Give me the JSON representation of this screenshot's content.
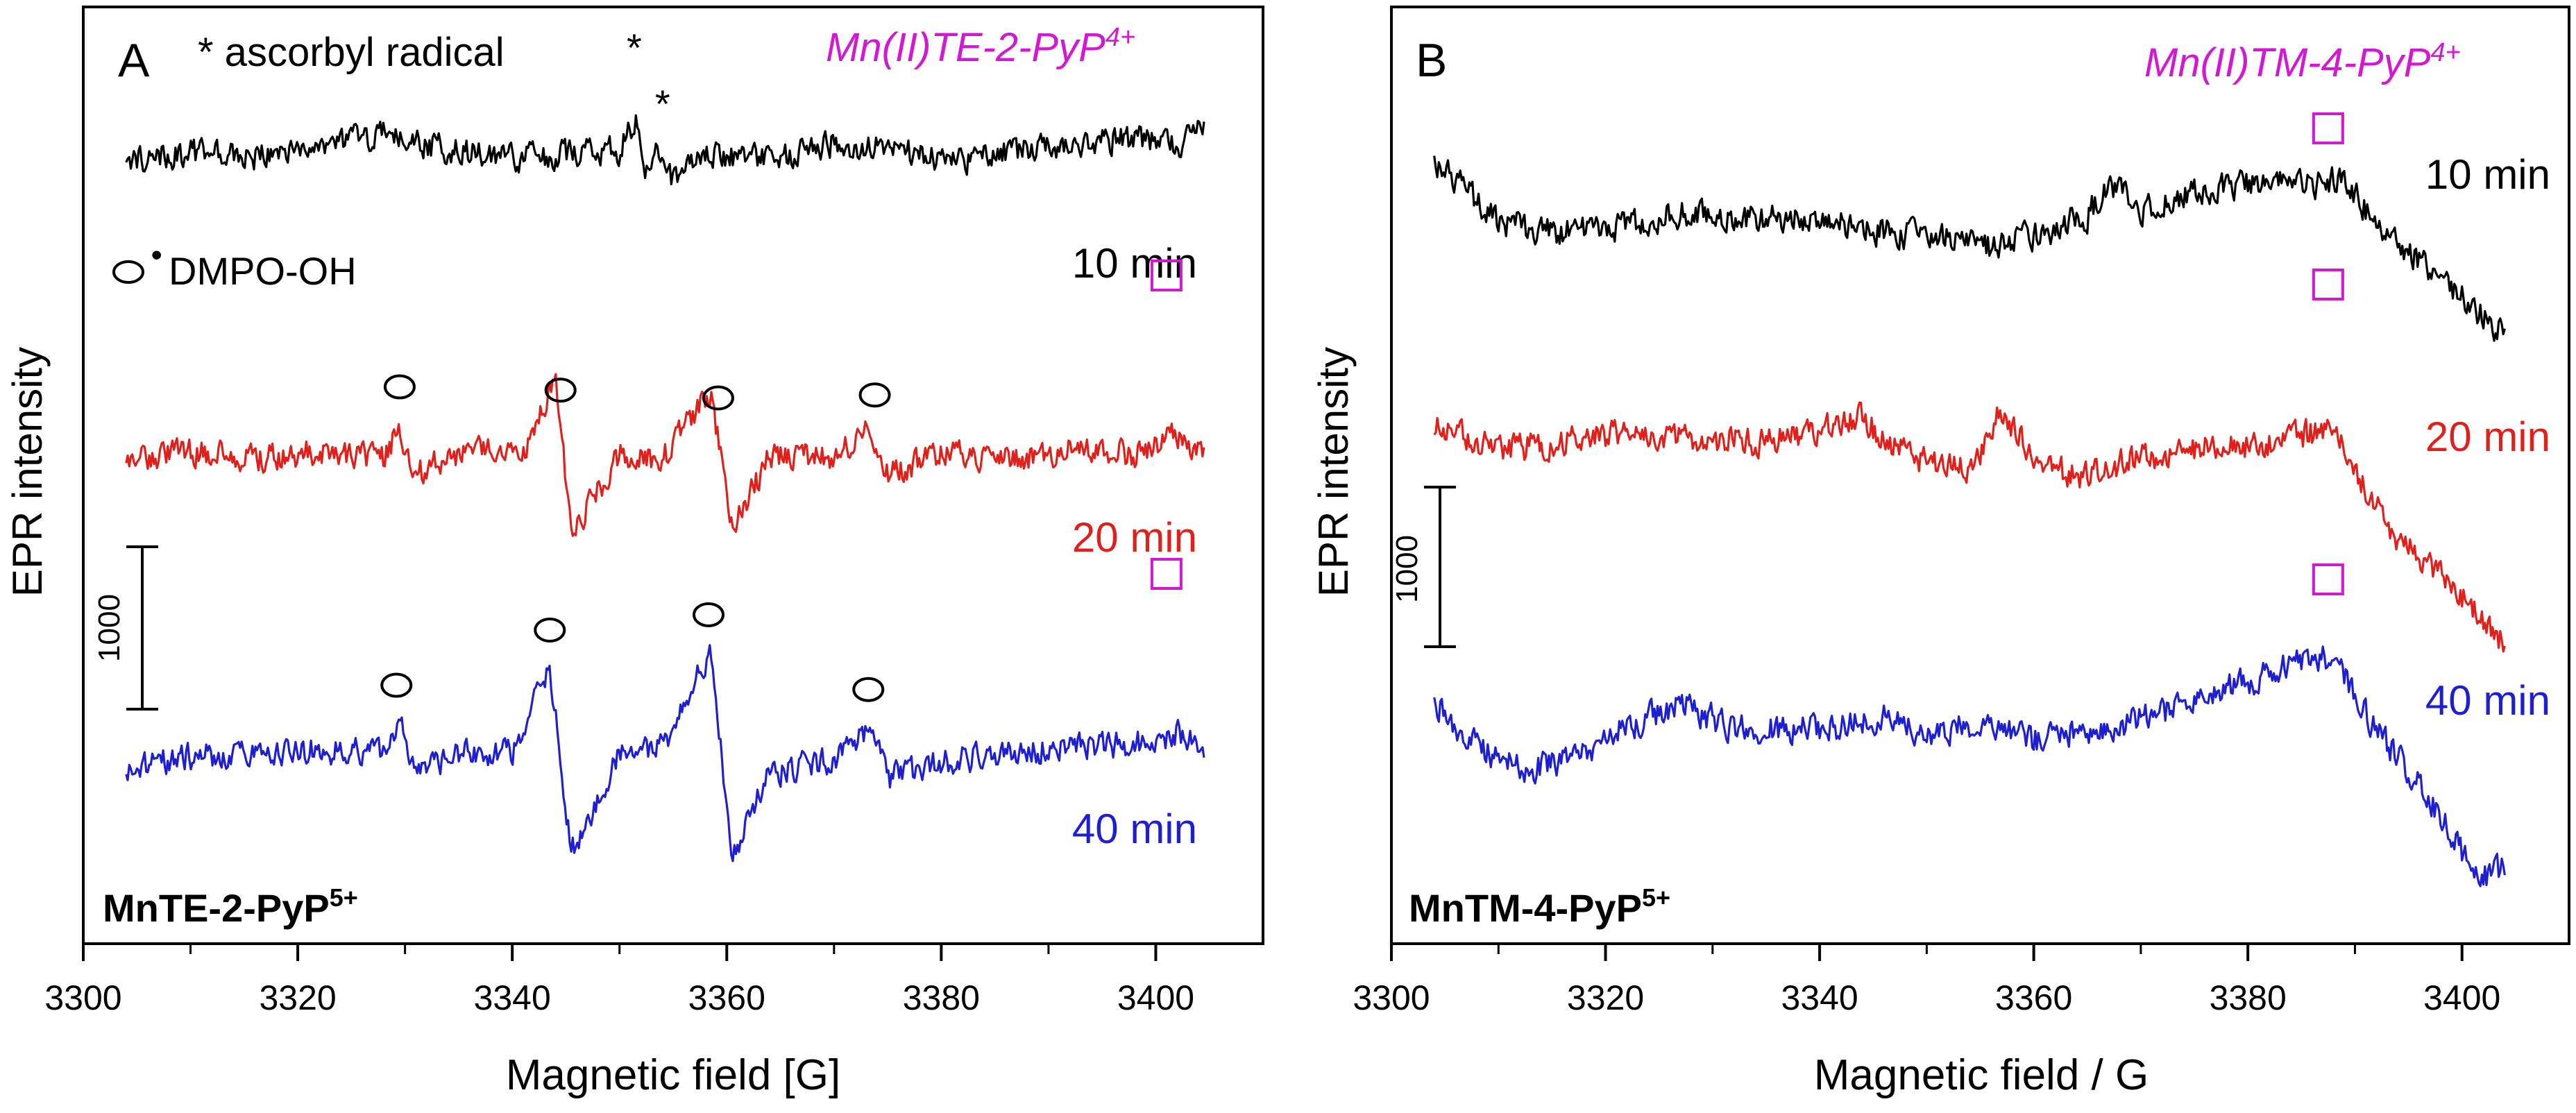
{
  "colors": {
    "black": "#000000",
    "red": "#e0201b",
    "blue": "#1f1fd2",
    "magenta": "#d218d2"
  },
  "chart_data": [
    {
      "type": "line",
      "panel_label": "A",
      "xlabel": "Magnetic field [G]",
      "ylabel": "EPR intensity",
      "xlim": [
        3300,
        3410
      ],
      "x_ticks": [
        3300,
        3320,
        3340,
        3360,
        3380,
        3400
      ],
      "x_tick_labels": [
        "3300",
        "3320",
        "3340",
        "3360",
        "3380",
        "3400"
      ],
      "grid": false,
      "scale_bar": {
        "label": "1000",
        "value": 1000
      },
      "legend_asterisk": "* ascorbyl radical",
      "legend_circle": "DMPO-OH",
      "legend_circle_dot": "•",
      "species_label": {
        "base": "Mn(II)TE-2-PyP",
        "sup": "4+"
      },
      "compound": {
        "base": "MnTE-2-PyP",
        "sup": "5+"
      },
      "star_markers": [
        "*",
        "*"
      ],
      "series": [
        {
          "name": "10 min",
          "color": "#000000",
          "offset": 3000,
          "x": [
            3304,
            3310,
            3316,
            3322,
            3328,
            3334,
            3340,
            3346,
            3350,
            3351.5,
            3352.5,
            3353.5,
            3355,
            3358,
            3364,
            3370,
            3376,
            3382,
            3388,
            3394,
            3398,
            3402,
            3404.5
          ],
          "y": [
            -50,
            0,
            -20,
            50,
            110,
            20,
            -40,
            0,
            20,
            200,
            -120,
            90,
            -190,
            0,
            -40,
            60,
            10,
            -60,
            30,
            60,
            90,
            40,
            140
          ]
        },
        {
          "name": "20 min",
          "color": "#e0201b",
          "offset": 1800,
          "x": [
            3304,
            3310,
            3316,
            3322,
            3328,
            3329.5,
            3331,
            3336,
            3341,
            3344,
            3345.5,
            3350,
            3354,
            3358.5,
            3360.5,
            3364,
            3370,
            3373.5,
            3375,
            3380,
            3386,
            3392,
            3398,
            3402,
            3404.5
          ],
          "y": [
            -50,
            20,
            -30,
            20,
            -20,
            160,
            -120,
            40,
            0,
            460,
            -500,
            0,
            -30,
            400,
            -480,
            0,
            -20,
            170,
            -130,
            10,
            -40,
            30,
            0,
            120,
            0
          ],
          "markers_circle_x": [
            3329.5,
            3344.5,
            3359.2,
            3373.8
          ]
        },
        {
          "name": "40 min",
          "color": "#1f1fd2",
          "offset": 300,
          "x": [
            3304,
            3310,
            3316,
            3322,
            3328,
            3329.5,
            3331,
            3336,
            3340,
            3343.5,
            3345.5,
            3350,
            3354,
            3358.5,
            3360.5,
            3364,
            3370,
            3373.5,
            3375,
            3380,
            3386,
            3392,
            3398,
            3402,
            3404.5
          ],
          "y": [
            -90,
            -20,
            0,
            20,
            0,
            200,
            -100,
            0,
            10,
            500,
            -600,
            -20,
            40,
            620,
            -640,
            -130,
            -40,
            150,
            -160,
            -60,
            0,
            30,
            60,
            120,
            40
          ],
          "markers_circle_x": [
            3329.2,
            3343.5,
            3358.3,
            3373.2
          ]
        }
      ],
      "markers_square_x": 3401
    },
    {
      "type": "line",
      "panel_label": "B",
      "xlabel": "Magnetic field / G",
      "ylabel": "EPR intensity",
      "xlim": [
        3300,
        3410
      ],
      "x_ticks": [
        3300,
        3320,
        3340,
        3360,
        3380,
        3400
      ],
      "x_tick_labels": [
        "3300",
        "3320",
        "3340",
        "3360",
        "3380",
        "3400"
      ],
      "grid": false,
      "scale_bar": {
        "label": "1000",
        "value": 1000
      },
      "species_label": {
        "base": "Mn(II)TM-4-PyP",
        "sup": "4+"
      },
      "compound": {
        "base": "MnTM-4-PyP",
        "sup": "5+"
      },
      "series": [
        {
          "name": "10 min",
          "color": "#000000",
          "offset": 3000,
          "x": [
            3304,
            3306,
            3310,
            3316,
            3322,
            3328,
            3334,
            3340,
            3346,
            3352,
            3356,
            3360,
            3365,
            3367,
            3370,
            3376,
            3382,
            3386,
            3388,
            3390,
            3394,
            3398,
            3402,
            3404
          ],
          "y": [
            400,
            300,
            40,
            -20,
            20,
            110,
            60,
            70,
            -20,
            -60,
            -120,
            -40,
            80,
            300,
            120,
            240,
            300,
            260,
            320,
            200,
            -100,
            -300,
            -550,
            -650
          ]
        },
        {
          "name": "20 min",
          "color": "#e0201b",
          "offset": 1800,
          "x": [
            3304,
            3310,
            3316,
            3322,
            3328,
            3334,
            3340,
            3344,
            3346,
            3350,
            3354,
            3357,
            3360,
            3364,
            3370,
            3376,
            3380,
            3386,
            3388,
            3390,
            3394,
            3398,
            3402,
            3404
          ],
          "y": [
            220,
            40,
            100,
            160,
            120,
            100,
            160,
            260,
            100,
            -30,
            -80,
            300,
            0,
            -120,
            0,
            60,
            80,
            150,
            220,
            -100,
            -500,
            -700,
            -1000,
            -1150
          ]
        },
        {
          "name": "40 min",
          "color": "#1f1fd2",
          "offset": 380,
          "x": [
            3304,
            3306,
            3310,
            3313,
            3318,
            3322,
            3327,
            3332,
            3340,
            3346,
            3350,
            3356,
            3360,
            3364,
            3370,
            3376,
            3382,
            3387,
            3389,
            3392,
            3396,
            3400,
            3402,
            3404
          ],
          "y": [
            260,
            40,
            -120,
            -200,
            -80,
            80,
            220,
            60,
            60,
            120,
            40,
            110,
            -10,
            40,
            120,
            260,
            400,
            520,
            380,
            60,
            -280,
            -700,
            -850,
            -800
          ]
        }
      ],
      "markers_square_x": 3387.5
    }
  ]
}
